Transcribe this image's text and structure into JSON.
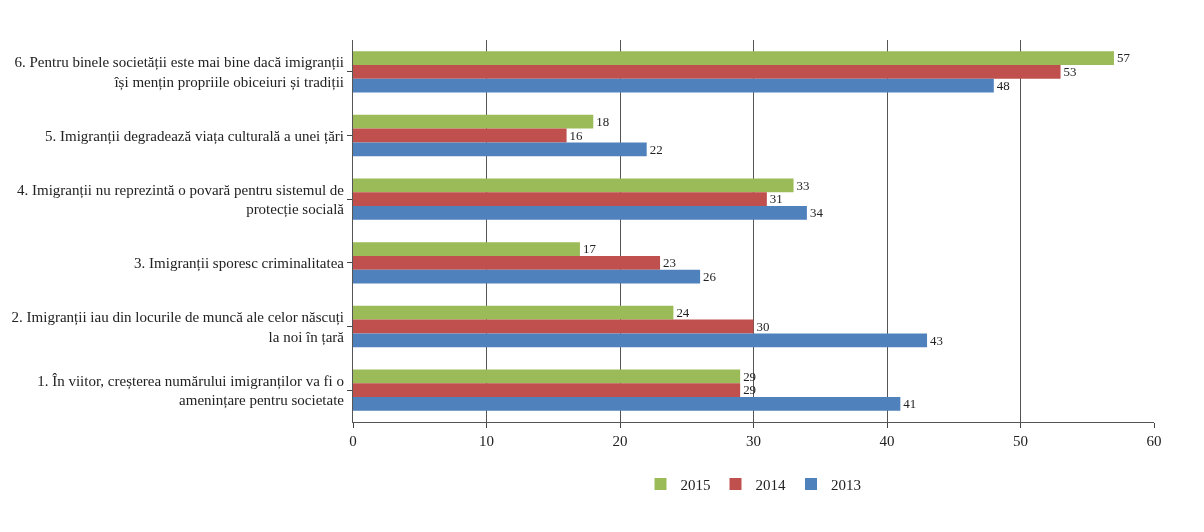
{
  "chart_data": {
    "type": "bar",
    "orientation": "horizontal",
    "categories": [
      "6. Pentru binele societății este mai bine dacă imigranții își mențin propriile obiceiuri și tradiții",
      "5. Imigranții degradează viața culturală a unei țări",
      "4. Imigranții nu reprezintă o povară pentru sistemul de protecție socială",
      "3. Imigranții sporesc criminalitatea",
      "2. Imigranții iau din locurile de muncă ale celor născuți la noi în țară",
      "1. În viitor, creșterea numărului imigranților va fi o amenințare pentru societate"
    ],
    "series": [
      {
        "name": "2015",
        "color": "#9bbb59",
        "values": [
          57,
          18,
          33,
          17,
          24,
          29
        ]
      },
      {
        "name": "2014",
        "color": "#c0504d",
        "values": [
          53,
          16,
          31,
          23,
          30,
          29
        ]
      },
      {
        "name": "2013",
        "color": "#4f81bd",
        "values": [
          48,
          22,
          34,
          26,
          43,
          41
        ]
      }
    ],
    "xlim": [
      0,
      60
    ],
    "xticks": [
      0,
      10,
      20,
      30,
      40,
      50,
      60
    ],
    "grid": "x",
    "legend": "bottom",
    "data_labels": true
  }
}
